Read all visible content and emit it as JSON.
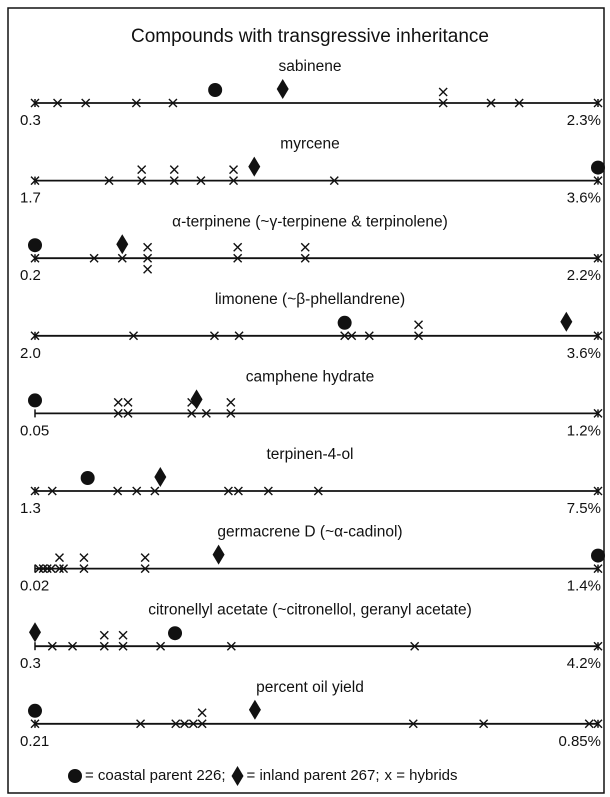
{
  "title": "Compounds with transgressive inheritance",
  "legend": [
    "= coastal parent 226;",
    "= inland parent 267;",
    "x = hybrids"
  ],
  "chart_data": [
    {
      "type": "strip",
      "title": "sabinene",
      "xlim": [
        0.3,
        2.3
      ],
      "xticks": [
        0.3,
        {
          "value": 2.3,
          "label": "2.3%"
        }
      ],
      "coastal": 0.94,
      "inland": 1.18,
      "hybrids": [
        0.3,
        0.38,
        0.48,
        0.66,
        0.79,
        1.75,
        1.75,
        1.92,
        2.02,
        2.3
      ]
    },
    {
      "type": "strip",
      "title": "myrcene",
      "xlim": [
        1.7,
        3.6
      ],
      "xticks": [
        1.7,
        {
          "value": 3.6,
          "label": "3.6%"
        }
      ],
      "coastal": 3.6,
      "inland": 2.44,
      "hybrids": [
        1.7,
        1.95,
        2.06,
        2.06,
        2.17,
        2.17,
        2.26,
        2.37,
        2.37,
        2.71,
        3.6
      ]
    },
    {
      "type": "strip",
      "title": "α-terpinene (~γ-terpinene & terpinolene)",
      "xlim": [
        0.2,
        2.2
      ],
      "xticks": [
        0.2,
        {
          "value": 2.2,
          "label": "2.2%"
        }
      ],
      "coastal": 0.2,
      "inland": 0.51,
      "hybrids": [
        0.2,
        0.41,
        0.51,
        0.6,
        0.6,
        0.6,
        0.92,
        0.92,
        1.16,
        1.16,
        2.2
      ]
    },
    {
      "type": "strip",
      "title": "limonene (~β-phellandrene)",
      "xlim": [
        2.0,
        3.6
      ],
      "xticks": [
        {
          "value": 2.0,
          "label": "2.0"
        },
        {
          "value": 3.6,
          "label": "3.6%"
        }
      ],
      "coastal": 2.88,
      "inland": 3.51,
      "hybrids": [
        2.0,
        2.28,
        2.51,
        2.58,
        2.88,
        2.9,
        2.95,
        3.09,
        3.09,
        3.6
      ]
    },
    {
      "type": "strip",
      "title": "camphene hydrate",
      "xlim": [
        0.05,
        1.2
      ],
      "xticks": [
        0.05,
        {
          "value": 1.2,
          "label": "1.2%"
        }
      ],
      "coastal": 0.05,
      "inland": 0.38,
      "hybrids": [
        0.22,
        0.22,
        0.24,
        0.24,
        0.37,
        0.37,
        0.4,
        0.45,
        0.45,
        1.2
      ]
    },
    {
      "type": "strip",
      "title": "terpinen-4-ol",
      "xlim": [
        1.3,
        7.5
      ],
      "xticks": [
        1.3,
        {
          "value": 7.5,
          "label": "7.5%"
        }
      ],
      "coastal": 1.88,
      "inland": 2.68,
      "hybrids": [
        1.3,
        1.49,
        2.21,
        2.42,
        2.62,
        3.43,
        3.54,
        3.87,
        4.42,
        7.5
      ]
    },
    {
      "type": "strip",
      "title": "germacrene D (~α-cadinol)",
      "xlim": [
        0.02,
        1.4
      ],
      "xticks": [
        0.02,
        {
          "value": 1.4,
          "label": "1.4%"
        }
      ],
      "coastal": 1.4,
      "inland": 0.47,
      "hybrids": [
        0.03,
        0.04,
        0.05,
        0.06,
        0.08,
        0.08,
        0.09,
        0.14,
        0.14,
        0.29,
        0.29,
        1.4
      ]
    },
    {
      "type": "strip",
      "title": "citronellyl acetate (~citronellol, geranyl acetate)",
      "xlim": [
        0.3,
        4.2
      ],
      "xticks": [
        0.3,
        {
          "value": 4.2,
          "label": "4.2%"
        }
      ],
      "coastal": 1.27,
      "inland": 0.3,
      "hybrids": [
        0.42,
        0.56,
        0.78,
        0.78,
        0.91,
        0.91,
        1.17,
        1.66,
        2.93,
        4.2
      ]
    },
    {
      "type": "strip",
      "title": "percent oil yield",
      "xlim": [
        0.21,
        0.85
      ],
      "xticks": [
        0.21,
        {
          "value": 0.85,
          "label": "0.85%"
        }
      ],
      "coastal": 0.21,
      "inland": 0.46,
      "hybrids": [
        0.21,
        0.33,
        0.37,
        0.38,
        0.39,
        0.4,
        0.4,
        0.64,
        0.72,
        0.84,
        0.85
      ]
    }
  ]
}
